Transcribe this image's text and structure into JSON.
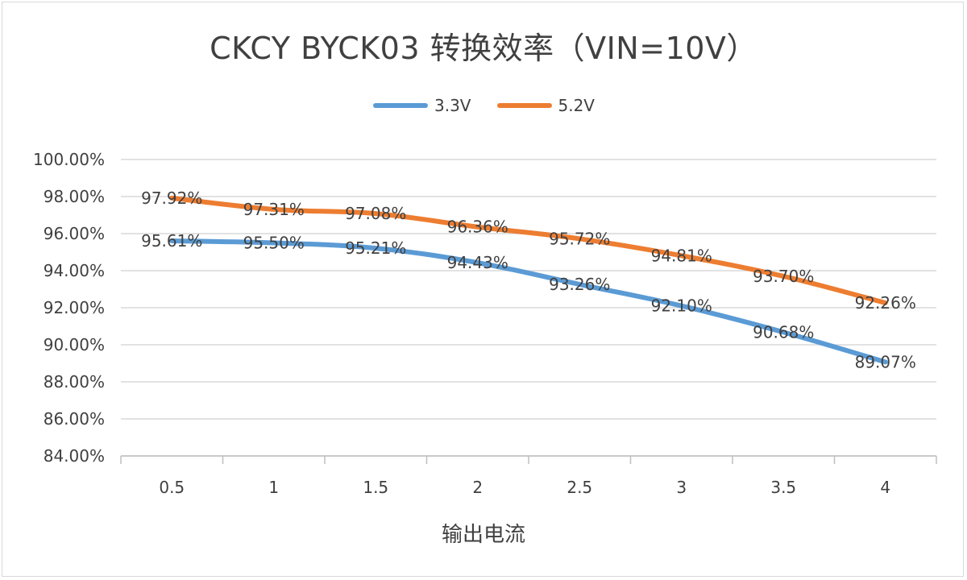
{
  "chart_data": {
    "type": "line",
    "title": "CKCY BYCK03 转换效率（VIN=10V）",
    "xlabel": "输出电流",
    "ylabel": "",
    "categories": [
      "0.5",
      "1",
      "1.5",
      "2",
      "2.5",
      "3",
      "3.5",
      "4"
    ],
    "ylim": [
      84,
      100
    ],
    "yticks": [
      "84.00%",
      "86.00%",
      "88.00%",
      "90.00%",
      "92.00%",
      "94.00%",
      "96.00%",
      "98.00%",
      "100.00%"
    ],
    "grid": true,
    "legend_position": "top-center",
    "series": [
      {
        "name": "3.3V",
        "color": "#5b9bd5",
        "values": [
          95.61,
          95.5,
          95.21,
          94.43,
          93.26,
          92.1,
          90.68,
          89.07
        ],
        "labels": [
          "95.61%",
          "95.50%",
          "95.21%",
          "94.43%",
          "93.26%",
          "92.10%",
          "90.68%",
          "89.07%"
        ]
      },
      {
        "name": "5.2V",
        "color": "#ed7d31",
        "values": [
          97.92,
          97.31,
          97.08,
          96.36,
          95.72,
          94.81,
          93.7,
          92.26
        ],
        "labels": [
          "97.92%",
          "97.31%",
          "97.08%",
          "96.36%",
          "95.72%",
          "94.81%",
          "93.70%",
          "92.26%"
        ]
      }
    ]
  }
}
